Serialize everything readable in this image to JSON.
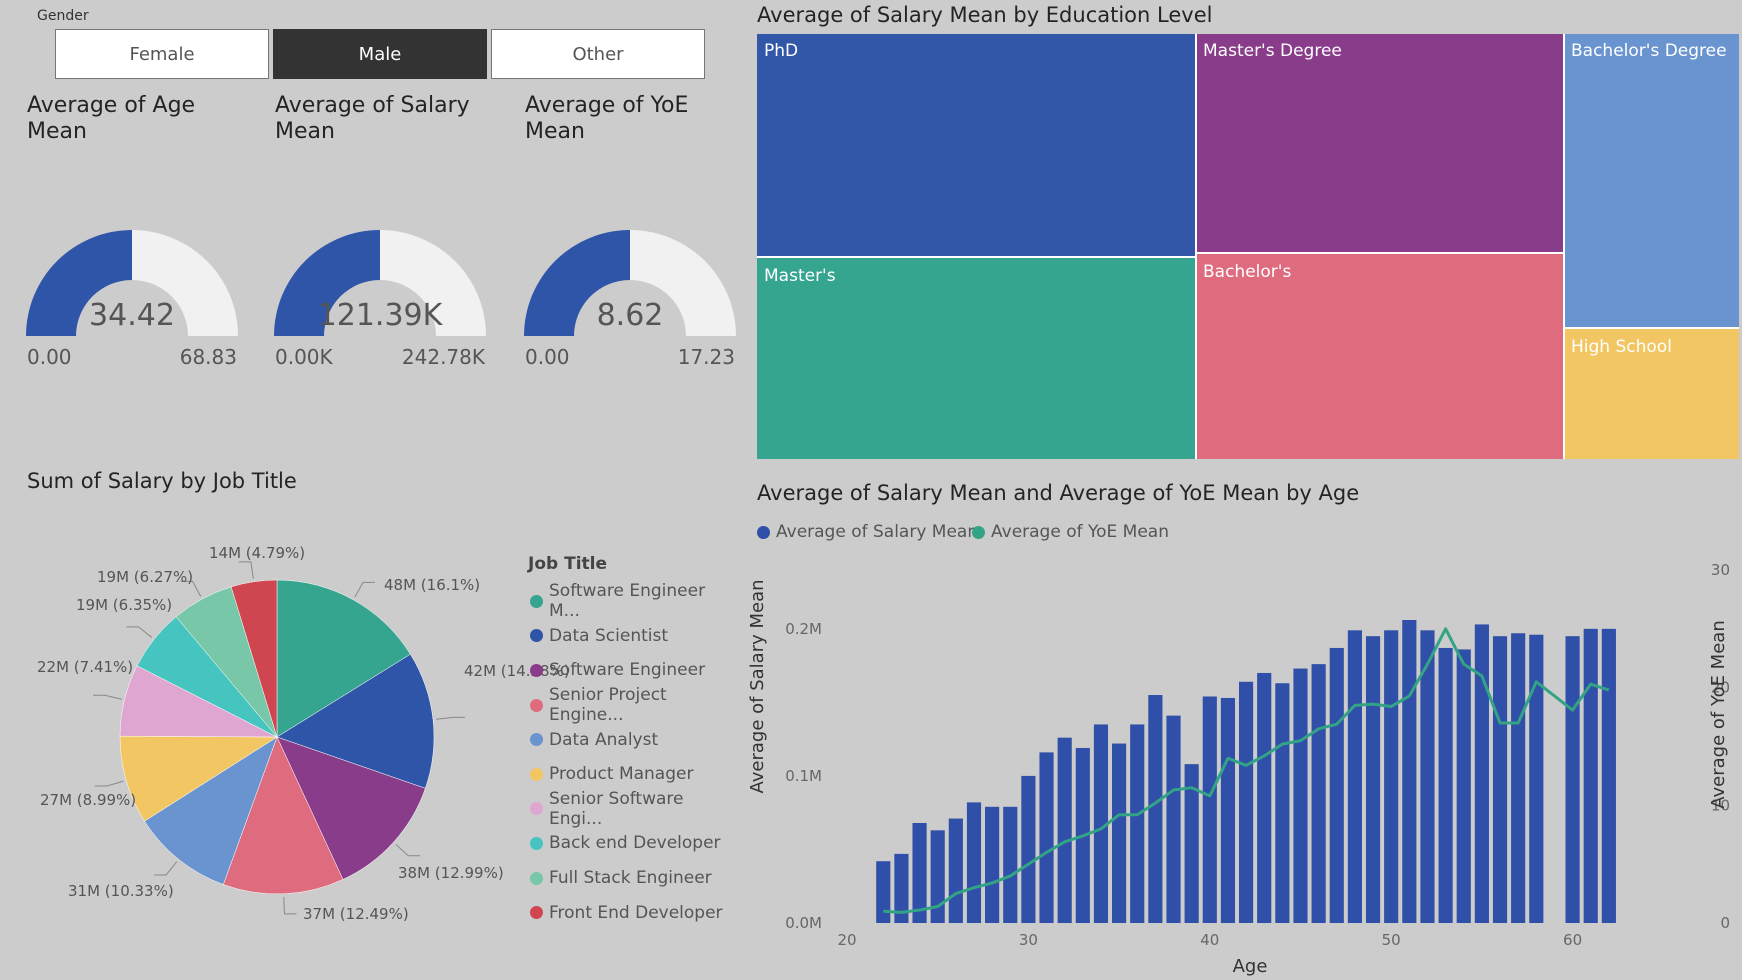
{
  "slicer": {
    "title": "Gender",
    "options": [
      {
        "label": "Female",
        "selected": false
      },
      {
        "label": "Male",
        "selected": true
      },
      {
        "label": "Other",
        "selected": false
      }
    ]
  },
  "gauges": [
    {
      "title_line1": "Average of Age",
      "title_line2": "Mean",
      "value": 34.42,
      "value_label": "34.42",
      "min": "0.00",
      "max": "68.83",
      "fill_fraction": 0.5
    },
    {
      "title_line1": "Average of Salary",
      "title_line2": "Mean",
      "value": 121.39,
      "value_label": "121.39K",
      "min": "0.00K",
      "max": "242.78K",
      "fill_fraction": 0.5
    },
    {
      "title_line1": "Average of YoE",
      "title_line2": "Mean",
      "value": 8.62,
      "value_label": "8.62",
      "min": "0.00",
      "max": "17.23",
      "fill_fraction": 0.5
    }
  ],
  "colors": {
    "gauge_fill": "#2f55a8",
    "gauge_track": "#f1f1f1",
    "bar": "#2f4fa8",
    "line": "#33a385"
  },
  "treemap": {
    "title": "Average of Salary Mean by Education Level",
    "cells": [
      {
        "label": "PhD",
        "color": "#3257a9"
      },
      {
        "label": "Master's",
        "color": "#36a590"
      },
      {
        "label": "Master's Degree",
        "color": "#883c89"
      },
      {
        "label": "Bachelor's",
        "color": "#df6b7f"
      },
      {
        "label": "Bachelor's Degree",
        "color": "#6a94cf"
      },
      {
        "label": "High School",
        "color": "#f3c664"
      }
    ]
  },
  "pie_chart": {
    "title": "Sum of Salary by Job Title",
    "legend_title": "Job Title",
    "chart_data": {
      "type": "pie",
      "slices": [
        {
          "name": "Software Engineer M...",
          "value": 48,
          "label": "48M (16.1%)",
          "color": "#36a590"
        },
        {
          "name": "Data Scientist",
          "value": 42,
          "label": "42M (14.28%)",
          "color": "#2f55a8"
        },
        {
          "name": "Software Engineer",
          "value": 38,
          "label": "38M (12.99%)",
          "color": "#883c89"
        },
        {
          "name": "Senior Project Engine...",
          "value": 37,
          "label": "37M (12.49%)",
          "color": "#df6b7f"
        },
        {
          "name": "Data Analyst",
          "value": 31,
          "label": "31M (10.33%)",
          "color": "#6a94cf"
        },
        {
          "name": "Product Manager",
          "value": 27,
          "label": "27M (8.99%)",
          "color": "#f3c664"
        },
        {
          "name": "Senior Software Engi...",
          "value": 22,
          "label": "22M (7.41%)",
          "color": "#e0a6d2"
        },
        {
          "name": "Back end Developer",
          "value": 19,
          "label": "19M (6.35%)",
          "color": "#46c4c0"
        },
        {
          "name": "Full Stack Engineer",
          "value": 19,
          "label": "19M (6.27%)",
          "color": "#77c7a8"
        },
        {
          "name": "Front End Developer",
          "value": 14,
          "label": "14M (4.79%)",
          "color": "#cf4550"
        }
      ]
    }
  },
  "combo_chart": {
    "title": "Average of Salary Mean and Average of YoE Mean by Age",
    "chart_data": {
      "type": "bar",
      "xlabel": "Age",
      "ylabel": "Average of Salary Mean",
      "y2label": "Average of YoE Mean",
      "x_ticks": [
        "20",
        "30",
        "40",
        "50",
        "60"
      ],
      "y_ticks": [
        "0.0M",
        "0.1M",
        "0.2M"
      ],
      "y2_ticks": [
        "0",
        "10",
        "20",
        "30"
      ],
      "xlim": [
        20,
        63
      ],
      "ylim": [
        0,
        0.24
      ],
      "y2lim": [
        0,
        30
      ],
      "series": [
        {
          "name": "Average of Salary Mean",
          "kind": "bar",
          "x": [
            22,
            23,
            24,
            25,
            26,
            27,
            28,
            29,
            30,
            31,
            32,
            33,
            34,
            35,
            36,
            37,
            38,
            39,
            40,
            41,
            42,
            43,
            44,
            45,
            46,
            47,
            48,
            49,
            50,
            51,
            52,
            53,
            54,
            55,
            56,
            57,
            58,
            60,
            61,
            62
          ],
          "y": [
            0.042,
            0.047,
            0.068,
            0.063,
            0.071,
            0.082,
            0.079,
            0.079,
            0.1,
            0.116,
            0.126,
            0.119,
            0.135,
            0.122,
            0.135,
            0.155,
            0.141,
            0.108,
            0.154,
            0.153,
            0.164,
            0.17,
            0.163,
            0.173,
            0.176,
            0.187,
            0.199,
            0.195,
            0.199,
            0.206,
            0.199,
            0.187,
            0.186,
            0.203,
            0.195,
            0.197,
            0.196,
            0.195,
            0.2,
            0.2
          ]
        },
        {
          "name": "Average of YoE Mean",
          "kind": "line",
          "x": [
            22,
            23,
            24,
            25,
            26,
            27,
            28,
            29,
            30,
            31,
            32,
            33,
            34,
            35,
            36,
            37,
            38,
            39,
            40,
            41,
            42,
            43,
            44,
            45,
            46,
            47,
            48,
            49,
            50,
            51,
            52,
            53,
            54,
            55,
            56,
            57,
            58,
            60,
            61,
            62
          ],
          "y": [
            1,
            0.9,
            1.1,
            1.4,
            2.5,
            3,
            3.4,
            4,
            5,
            6,
            6.9,
            7.4,
            8,
            9.2,
            9.2,
            10.2,
            11.3,
            11.5,
            10.8,
            14,
            13.4,
            14.2,
            15.2,
            15.5,
            16.5,
            16.9,
            18.5,
            18.6,
            18.4,
            19.3,
            22,
            25,
            22,
            21,
            17,
            17,
            20.5,
            18.1,
            20.3,
            19.8
          ]
        }
      ]
    }
  }
}
